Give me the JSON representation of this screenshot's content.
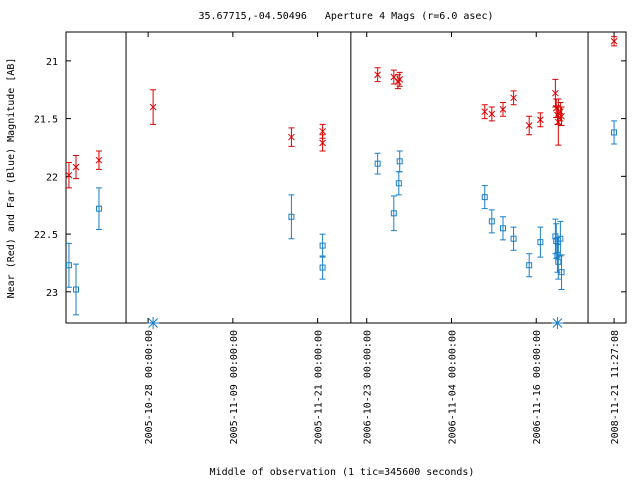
{
  "chart_data": {
    "type": "scatter",
    "title": "35.67715,-04.50496   Aperture 4 Mags (r=6.0 asec)",
    "xlabel": "Middle of observation (1 tic=345600 seconds)",
    "ylabel": "Near (Red) and Far (Blue) Magnitude [AB]",
    "ylim": [
      23.27,
      20.75
    ],
    "yticks": [
      21,
      21.5,
      22,
      22.5,
      23
    ],
    "segments": [
      {
        "xlim": [
          "2004-11-01 00:00:00",
          "2004-11-09 12:00:00"
        ],
        "xticks": []
      },
      {
        "xlim": [
          "2005-10-24 21:00:00",
          "2005-11-25 17:00:00"
        ],
        "xticks": [
          "2005-10-28 00:00:00",
          "2005-11-09 00:00:00",
          "2005-11-21 00:00:00"
        ]
      },
      {
        "xlim": [
          "2006-10-20 18:00:00",
          "2006-11-23 08:00:00"
        ],
        "xticks": [
          "2006-10-23 00:00:00",
          "2006-11-04 00:00:00",
          "2006-11-16 00:00:00"
        ]
      },
      {
        "xlim": [
          "2008-11-17 19:00:00",
          "2008-11-23 04:00:00"
        ],
        "xticks": [
          "2008-11-21 11:27:08"
        ]
      }
    ],
    "series": [
      {
        "color": "#dd0000",
        "marker": "cross",
        "x": [
          "2004-11-01 10:00:00",
          "2004-11-02 10:00:00",
          "2004-11-05 16:00:00",
          "2005-10-28 17:00:00",
          "2005-11-17 07:00:00",
          "2005-11-21 17:00:00",
          "2005-11-21 17:00:00",
          "2006-10-24 13:00:00",
          "2006-10-26 20:00:00",
          "2006-10-27 10:00:00",
          "2006-10-27 16:00:00",
          "2006-11-08 17:00:00",
          "2006-11-09 17:00:00",
          "2006-11-11 07:00:00",
          "2006-11-12 19:00:00",
          "2006-11-15 00:00:00",
          "2006-11-16 14:00:00",
          "2006-11-18 17:00:00",
          "2006-11-18 20:00:00",
          "2006-11-19 00:00:00",
          "2006-11-19 03:00:00",
          "2006-11-19 10:00:00",
          "2006-11-19 14:00:00",
          "2008-11-21 11:27:08"
        ],
        "values": [
          21.99,
          21.92,
          21.86,
          21.4,
          21.66,
          21.61,
          21.71,
          21.12,
          21.14,
          21.18,
          21.16,
          21.44,
          21.46,
          21.42,
          21.32,
          21.56,
          21.51,
          21.28,
          21.41,
          21.47,
          21.53,
          21.44,
          21.48,
          20.83
        ],
        "errors": [
          0.11,
          0.1,
          0.08,
          0.15,
          0.08,
          0.06,
          0.07,
          0.06,
          0.06,
          0.06,
          0.06,
          0.06,
          0.06,
          0.06,
          0.06,
          0.08,
          0.06,
          0.12,
          0.08,
          0.08,
          0.2,
          0.08,
          0.08,
          0.04
        ]
      },
      {
        "color": "#1a7fc8",
        "marker": "square",
        "x": [
          "2004-11-01 10:00:00",
          "2004-11-02 10:00:00",
          "2004-11-05 16:00:00",
          "2005-11-17 07:00:00",
          "2005-11-21 17:00:00",
          "2005-11-21 17:00:00",
          "2006-10-24 13:00:00",
          "2006-10-26 20:00:00",
          "2006-10-27 13:00:00",
          "2006-10-27 16:00:00",
          "2006-11-08 17:00:00",
          "2006-11-09 17:00:00",
          "2006-11-11 07:00:00",
          "2006-11-12 19:00:00",
          "2006-11-15 00:00:00",
          "2006-11-16 14:00:00",
          "2006-11-18 17:00:00",
          "2006-11-18 20:00:00",
          "2006-11-19 00:00:00",
          "2006-11-19 03:00:00",
          "2006-11-19 10:00:00",
          "2006-11-19 14:00:00",
          "2008-11-21 11:27:08"
        ],
        "values": [
          22.77,
          22.98,
          22.28,
          22.35,
          22.6,
          22.79,
          21.89,
          22.32,
          22.06,
          21.87,
          22.18,
          22.39,
          22.45,
          22.54,
          22.77,
          22.57,
          22.52,
          22.56,
          22.68,
          22.74,
          22.54,
          22.83,
          21.62
        ],
        "errors": [
          0.19,
          0.22,
          0.18,
          0.19,
          0.1,
          0.1,
          0.09,
          0.15,
          0.1,
          0.09,
          0.1,
          0.1,
          0.1,
          0.1,
          0.1,
          0.13,
          0.15,
          0.15,
          0.15,
          0.15,
          0.15,
          0.15,
          0.1
        ]
      },
      {
        "color": "#1a7fc8",
        "marker": "asterisk",
        "x": [
          "2005-10-28 17:00:00",
          "2006-11-19 00:00:00"
        ],
        "values": [
          23.27,
          23.27
        ]
      }
    ]
  }
}
